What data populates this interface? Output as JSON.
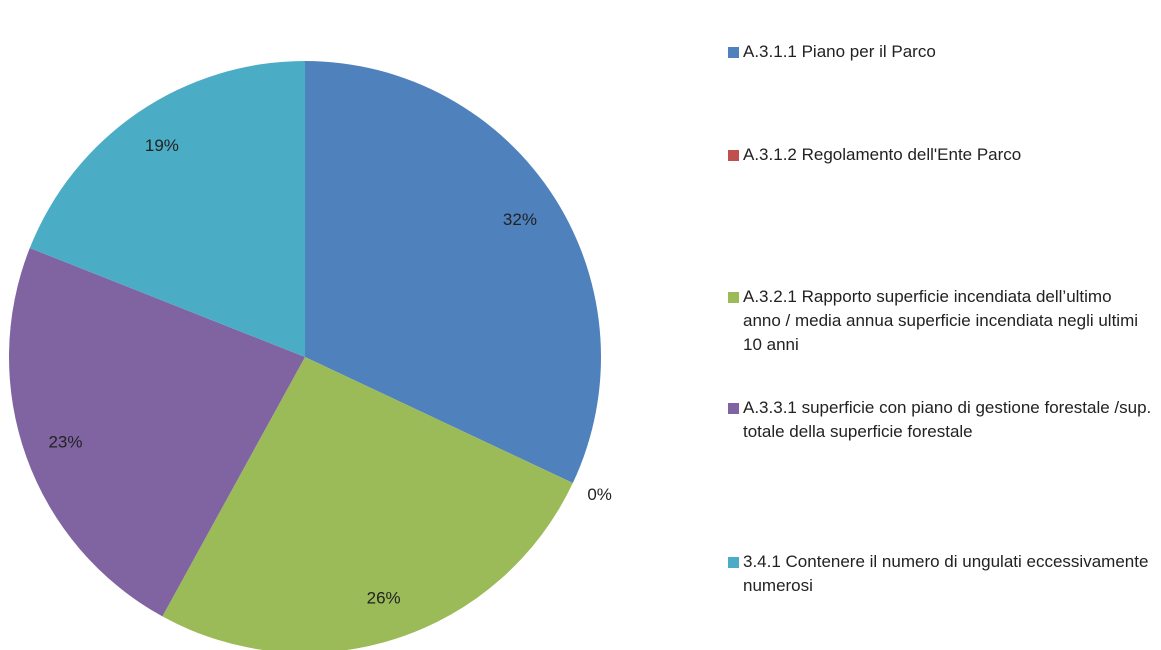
{
  "chart_data": {
    "type": "pie",
    "categories": [
      "A.3.1.1 Piano per il Parco",
      "A.3.1.2 Regolamento dell'Ente Parco",
      "A.3.2.1 Rapporto superficie incendiata dell’ultimo anno / media annua superficie incendiata negli ultimi 10 anni",
      "A.3.3.1 superficie con piano di gestione forestale /sup. totale della superficie forestale",
      "3.4.1 Contenere il numero di ungulati eccessivamente numerosi"
    ],
    "values": [
      32,
      0,
      26,
      23,
      19
    ],
    "value_labels": [
      "32%",
      "0%",
      "26%",
      "23%",
      "19%"
    ],
    "colors": [
      "#4f81bd",
      "#c0504d",
      "#9bbb59",
      "#8064a2",
      "#4bacc6"
    ],
    "legend": "right"
  }
}
